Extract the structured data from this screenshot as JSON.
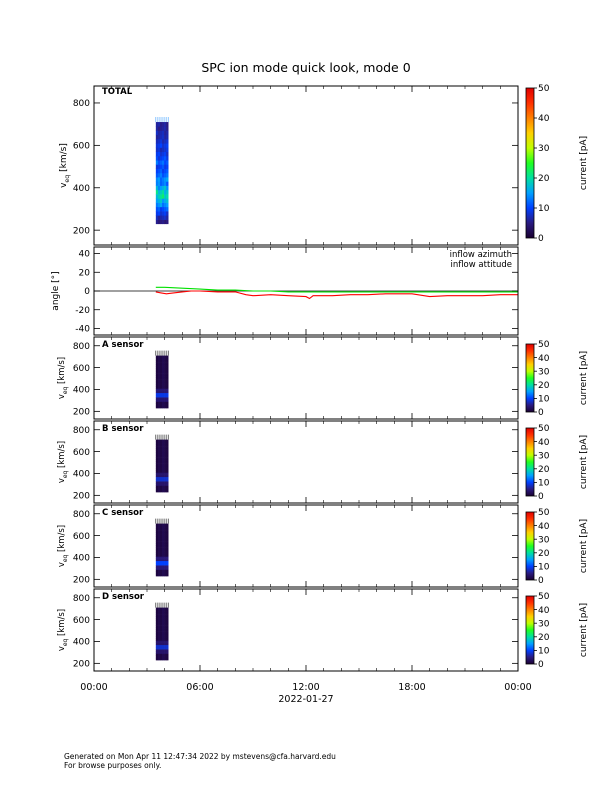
{
  "title": "SPC ion mode quick look, mode 0",
  "footer": {
    "generated": "Generated on Mon Apr 11 12:47:34 2022 by mstevens@cfa.harvard.edu",
    "browse": "For browse purposes only."
  },
  "xaxis": {
    "ticks": [
      "00:00",
      "06:00",
      "12:00",
      "18:00",
      "00:00"
    ],
    "tick_hours": [
      0,
      6,
      12,
      18,
      24
    ],
    "date_label": "2022-01-27",
    "range_hours": [
      0,
      24
    ]
  },
  "colorbar": {
    "label": "current [pA]",
    "colormap": [
      "#1a0030",
      "#2a1a80",
      "#0040ff",
      "#00a0ff",
      "#00e0a0",
      "#20ff20",
      "#c0ff00",
      "#ffd000",
      "#ff8000",
      "#ff3000",
      "#e00000"
    ]
  },
  "panels": {
    "total": {
      "label": "TOTAL",
      "ylabel": "v",
      "ylabel_sub": "eq",
      "ylabel_unit": "[km/s]",
      "ylim": [
        130,
        880
      ],
      "yticks": [
        200,
        400,
        600,
        800
      ],
      "cbar_ticks": [
        0,
        10,
        20,
        30,
        40,
        50
      ],
      "cbar_range": [
        0,
        50
      ]
    },
    "angle": {
      "ylabel": "angle [°]",
      "ylim": [
        -47,
        47
      ],
      "yticks": [
        -40,
        -20,
        0,
        20,
        40
      ],
      "legend": [
        {
          "name": "inflow azimuth",
          "color": "#ff0000"
        },
        {
          "name": "inflow attitude",
          "color": "#00e000"
        }
      ]
    },
    "sensors": [
      {
        "label": "A sensor",
        "ylabel": "v",
        "ylabel_sub": "eq",
        "ylabel_unit": "[km/s]",
        "ylim": [
          130,
          880
        ],
        "yticks": [
          200,
          400,
          600,
          800
        ],
        "cbar_ticks": [
          0,
          10,
          20,
          30,
          40,
          50
        ],
        "cbar_range": [
          0,
          50
        ]
      },
      {
        "label": "B sensor",
        "ylabel": "v",
        "ylabel_sub": "eq",
        "ylabel_unit": "[km/s]",
        "ylim": [
          130,
          880
        ],
        "yticks": [
          200,
          400,
          600,
          800
        ],
        "cbar_ticks": [
          0,
          10,
          20,
          30,
          40,
          50
        ],
        "cbar_range": [
          0,
          50
        ]
      },
      {
        "label": "C sensor",
        "ylabel": "v",
        "ylabel_sub": "eq",
        "ylabel_unit": "[km/s]",
        "ylim": [
          130,
          880
        ],
        "yticks": [
          200,
          400,
          600,
          800
        ],
        "cbar_ticks": [
          0,
          10,
          20,
          30,
          40,
          50
        ],
        "cbar_range": [
          0,
          50
        ]
      },
      {
        "label": "D sensor",
        "ylabel": "v",
        "ylabel_sub": "eq",
        "ylabel_unit": "[km/s]",
        "ylim": [
          130,
          880
        ],
        "yticks": [
          200,
          400,
          600,
          800
        ],
        "cbar_ticks": [
          0,
          10,
          20,
          30,
          40,
          50
        ],
        "cbar_range": [
          0,
          50
        ]
      }
    ]
  },
  "chart_data": [
    {
      "type": "heatmap",
      "panel": "TOTAL",
      "x_hours_range": [
        3.5,
        4.2
      ],
      "y_range_km_s": [
        230,
        710
      ],
      "bins_km_s": [
        230,
        250,
        270,
        290,
        310,
        330,
        350,
        370,
        390,
        410,
        430,
        450,
        470,
        490,
        510,
        530,
        550,
        570,
        590,
        610,
        630,
        650,
        670,
        690
      ],
      "bin_values_pA": [
        5,
        7,
        9,
        11,
        14,
        17,
        20,
        19,
        16,
        13,
        14,
        12,
        11,
        10,
        12,
        10,
        9,
        8,
        9,
        8,
        7,
        7,
        6,
        6
      ]
    },
    {
      "type": "line",
      "panel": "angle",
      "series": [
        {
          "name": "inflow azimuth",
          "color": "#ff0000",
          "x_hours": [
            3.5,
            3.8,
            4.1,
            4.5,
            5.0,
            5.5,
            6.0,
            7.0,
            8.0,
            8.6,
            9.0,
            10.0,
            11.0,
            12.0,
            12.2,
            12.4,
            12.8,
            13.5,
            14.5,
            15.5,
            16.5,
            17.5,
            18.0,
            19.0,
            20.0,
            21.0,
            22.0,
            23.0,
            24.0
          ],
          "y_deg": [
            -1,
            -2,
            -3,
            -2,
            -1,
            0,
            0,
            -1,
            -1,
            -4,
            -5,
            -4,
            -5,
            -6,
            -8,
            -5,
            -5,
            -5,
            -4,
            -4,
            -3,
            -3,
            -3,
            -6,
            -5,
            -5,
            -5,
            -4,
            -4
          ]
        },
        {
          "name": "inflow attitude",
          "color": "#00e000",
          "x_hours": [
            3.5,
            4.0,
            5.0,
            6.0,
            7.0,
            8.0,
            9.0,
            10.0,
            11.0,
            12.0,
            13.0,
            14.0,
            15.0,
            16.0,
            17.0,
            18.0,
            19.0,
            20.0,
            21.0,
            22.0,
            23.0,
            24.0
          ],
          "y_deg": [
            4,
            4,
            3,
            2,
            1,
            1,
            0,
            0,
            -1,
            -1,
            -1,
            -1,
            -1,
            -1,
            -1,
            -1,
            -1,
            -1,
            -1,
            -1,
            -1,
            -1
          ]
        }
      ]
    },
    {
      "type": "heatmap",
      "panel": "A sensor",
      "x_hours_range": [
        3.5,
        4.2
      ],
      "y_range_km_s": [
        230,
        710
      ],
      "peak_km_s": 350,
      "peak_pA": 9
    },
    {
      "type": "heatmap",
      "panel": "B sensor",
      "x_hours_range": [
        3.5,
        4.2
      ],
      "y_range_km_s": [
        230,
        710
      ],
      "peak_km_s": 350,
      "peak_pA": 8
    },
    {
      "type": "heatmap",
      "panel": "C sensor",
      "x_hours_range": [
        3.5,
        4.2
      ],
      "y_range_km_s": [
        230,
        710
      ],
      "peak_km_s": 350,
      "peak_pA": 10
    },
    {
      "type": "heatmap",
      "panel": "D sensor",
      "x_hours_range": [
        3.5,
        4.2
      ],
      "y_range_km_s": [
        230,
        710
      ],
      "peak_km_s": 350,
      "peak_pA": 8
    }
  ]
}
